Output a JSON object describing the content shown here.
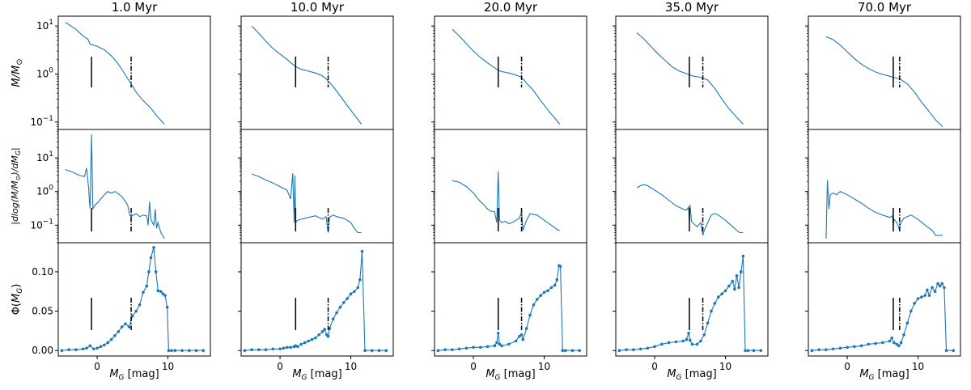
{
  "chart_data": {
    "type": "line",
    "layout": "3 rows x 5 columns of panels, shared x and y axes",
    "titles": [
      "1.0 Myr",
      "10.0 Myr",
      "20.0 Myr",
      "35.0 Myr",
      "70.0 Myr"
    ],
    "xlabel": "M_G [mag]",
    "xlim": [
      -5.5,
      16
    ],
    "xticks": [
      0,
      10
    ],
    "xtick_labels": [
      "0",
      "10"
    ],
    "rows": [
      {
        "ylabel": "M/M⊙",
        "yscale": "log",
        "ylim": [
          0.07,
          16
        ],
        "yticks": [
          0.1,
          1,
          10
        ],
        "ytick_exps": [
          "−1",
          "0",
          "1"
        ]
      },
      {
        "ylabel": "|dlog(M/M⊙)/dM_G|",
        "yscale": "log",
        "ylim": [
          0.03,
          70
        ],
        "yticks": [
          0.1,
          1,
          10
        ],
        "ytick_exps": [
          "−1",
          "0",
          "1"
        ]
      },
      {
        "ylabel": "Φ(M_G)",
        "yscale": "linear",
        "ylim": [
          -0.007,
          0.137
        ],
        "yticks": [
          0,
          0.05,
          0.1
        ],
        "ytick_labels": [
          "0.00",
          "0.05",
          "0.10"
        ]
      }
    ],
    "panels": [
      {
        "age": "1.0 Myr",
        "solid_marker_x": -0.8,
        "dashdot_marker_x": 4.8,
        "mass": {
          "x": [
            -4.5,
            -3,
            -2,
            -1.3,
            -1,
            0,
            1,
            2,
            3,
            4,
            4.8,
            5.5,
            6.5,
            7.5,
            8.5,
            9.5
          ],
          "y": [
            12,
            8.5,
            6.2,
            5.3,
            4.2,
            3.8,
            3.2,
            2.4,
            1.6,
            0.95,
            0.62,
            0.42,
            0.28,
            0.2,
            0.13,
            0.09
          ]
        },
        "dmdm": {
          "x": [
            -4.5,
            -3.5,
            -2.5,
            -1.8,
            -1.5,
            -1.2,
            -1.1,
            -1,
            -0.8,
            -0.6,
            -0.5,
            -0.3,
            0,
            0.5,
            1,
            1.5,
            2,
            2.5,
            3,
            3.5,
            4,
            4.3,
            4.6,
            4.8,
            5,
            5.2,
            5.5,
            6,
            6.5,
            7,
            7.2,
            7.4,
            7.6,
            7.8,
            8,
            8.2,
            8.4,
            8.6,
            9,
            9.5
          ],
          "y": [
            4.5,
            3.8,
            3,
            2.8,
            5,
            1.2,
            0.5,
            0.32,
            50,
            0.3,
            0.33,
            0.4,
            0.45,
            0.6,
            0.8,
            1.0,
            0.9,
            1.0,
            0.85,
            0.7,
            0.5,
            0.4,
            0.2,
            0.17,
            0.2,
            0.2,
            0.22,
            0.18,
            0.2,
            0.19,
            0.1,
            0.5,
            0.15,
            0.12,
            0.1,
            0.3,
            0.08,
            0.12,
            0.06,
            0.04
          ]
        },
        "lf": {
          "x": [
            -5,
            -4,
            -3,
            -2,
            -1.5,
            -1,
            -0.5,
            0,
            0.5,
            1,
            1.5,
            2,
            2.5,
            3,
            3.5,
            4,
            4.5,
            5,
            5.5,
            6,
            6.5,
            7,
            7.3,
            7.6,
            8,
            8.3,
            8.6,
            9,
            9.3,
            9.6,
            9.9,
            10.1,
            10.5,
            11,
            12,
            13,
            14,
            15
          ],
          "y": [
            0,
            0.001,
            0.001,
            0.002,
            0.003,
            0.006,
            0.002,
            0.003,
            0.005,
            0.007,
            0.01,
            0.014,
            0.019,
            0.024,
            0.03,
            0.034,
            0.03,
            0.044,
            0.05,
            0.058,
            0.074,
            0.082,
            0.1,
            0.118,
            0.131,
            0.1,
            0.076,
            0.075,
            0.072,
            0.07,
            0.055,
            0,
            0,
            0,
            0,
            0,
            0,
            0
          ]
        }
      },
      {
        "age": "10.0 Myr",
        "solid_marker_x": 2.2,
        "dashdot_marker_x": 6.8,
        "mass": {
          "x": [
            -4,
            -3,
            -2,
            -1,
            0,
            1,
            2,
            2.5,
            3,
            4,
            5,
            5.8,
            6.5,
            7.5,
            8.5,
            9.5,
            10.5,
            11.5
          ],
          "y": [
            10,
            7,
            4.8,
            3.4,
            2.6,
            2.0,
            1.5,
            1.35,
            1.25,
            1.15,
            1.05,
            0.95,
            0.8,
            0.55,
            0.35,
            0.22,
            0.14,
            0.09
          ]
        },
        "dmdm": {
          "x": [
            -4,
            -3,
            -2,
            -1,
            0,
            1,
            1.5,
            1.8,
            2,
            2.1,
            2.2,
            2.3,
            2.5,
            3,
            3.5,
            4,
            5,
            5.5,
            6,
            6.5,
            6.8,
            7,
            7.5,
            8,
            9,
            10,
            10.5,
            11,
            11.5
          ],
          "y": [
            3.3,
            2.8,
            2.2,
            1.8,
            1.4,
            1.1,
            0.6,
            3.5,
            0.12,
            3,
            0.11,
            0.13,
            0.14,
            0.15,
            0.16,
            0.17,
            0.19,
            0.17,
            0.15,
            0.18,
            0.06,
            0.17,
            0.2,
            0.18,
            0.16,
            0.12,
            0.08,
            0.06,
            0.06
          ]
        },
        "lf": {
          "x": [
            -5,
            -4,
            -3,
            -2,
            -1,
            0,
            0.5,
            1,
            1.5,
            2,
            2.2,
            2.5,
            3,
            3.5,
            4,
            4.5,
            5,
            5.5,
            6,
            6.3,
            6.6,
            6.8,
            7,
            7.5,
            8,
            8.5,
            9,
            9.5,
            10,
            10.5,
            11,
            11.3,
            11.6,
            12,
            13,
            14,
            15
          ],
          "y": [
            0,
            0.001,
            0.001,
            0.001,
            0.002,
            0.002,
            0.003,
            0.004,
            0.004,
            0.005,
            0.006,
            0.005,
            0.008,
            0.01,
            0.012,
            0.014,
            0.016,
            0.02,
            0.024,
            0.027,
            0.02,
            0.018,
            0.028,
            0.04,
            0.048,
            0.055,
            0.061,
            0.066,
            0.072,
            0.075,
            0.08,
            0.09,
            0.126,
            0,
            0,
            0,
            0
          ]
        }
      },
      {
        "age": "20.0 Myr",
        "solid_marker_x": 3.5,
        "dashdot_marker_x": 6.8,
        "mass": {
          "x": [
            -3,
            -2,
            -1,
            0,
            1,
            2,
            3,
            3.5,
            4,
            5,
            6,
            6.8,
            7.5,
            8.5,
            9.5,
            10.5,
            11.5,
            12.2
          ],
          "y": [
            8.5,
            6.2,
            4.3,
            3.0,
            2.2,
            1.7,
            1.35,
            1.2,
            1.12,
            1.05,
            0.95,
            0.85,
            0.65,
            0.45,
            0.28,
            0.18,
            0.12,
            0.09
          ]
        },
        "dmdm": {
          "x": [
            -3,
            -2,
            -1,
            0,
            0.5,
            1,
            1.5,
            2,
            2.5,
            3,
            3.3,
            3.5,
            3.7,
            4,
            4.5,
            5,
            5.5,
            6,
            6.5,
            6.8,
            7,
            7.5,
            8,
            9,
            10,
            11,
            12,
            12.2
          ],
          "y": [
            2.1,
            1.9,
            1.4,
            0.9,
            0.65,
            0.5,
            0.4,
            0.3,
            0.26,
            0.25,
            0.12,
            4,
            0.14,
            0.12,
            0.13,
            0.11,
            0.12,
            0.14,
            0.16,
            0.25,
            0.07,
            0.14,
            0.22,
            0.2,
            0.14,
            0.1,
            0.07,
            0.07
          ]
        },
        "lf": {
          "x": [
            -5,
            -4,
            -3,
            -2,
            -1,
            0,
            1,
            2,
            3,
            3.3,
            3.5,
            3.7,
            4,
            5,
            6,
            6.5,
            6.8,
            7,
            7.5,
            8,
            8.5,
            9,
            9.5,
            10,
            10.5,
            11,
            11.5,
            11.8,
            12.1,
            12.3,
            12.6,
            13,
            14,
            15
          ],
          "y": [
            0,
            0.001,
            0.001,
            0.002,
            0.003,
            0.004,
            0.004,
            0.005,
            0.006,
            0.01,
            0.022,
            0.008,
            0.006,
            0.008,
            0.012,
            0.018,
            0.02,
            0.014,
            0.028,
            0.045,
            0.058,
            0.065,
            0.07,
            0.074,
            0.076,
            0.08,
            0.083,
            0.09,
            0.108,
            0.107,
            0,
            0,
            0,
            0
          ]
        }
      },
      {
        "age": "35.0 Myr",
        "solid_marker_x": 4.9,
        "dashdot_marker_x": 6.8,
        "mass": {
          "x": [
            -2.5,
            -1.5,
            -0.5,
            0.5,
            1.5,
            2.5,
            3.5,
            4.5,
            5,
            5.5,
            6.5,
            7.5,
            8.5,
            9.5,
            10.5,
            11.5,
            12.5
          ],
          "y": [
            7.2,
            5.3,
            3.7,
            2.6,
            1.9,
            1.4,
            1.15,
            1.02,
            0.95,
            0.9,
            0.85,
            0.75,
            0.5,
            0.3,
            0.19,
            0.13,
            0.09
          ]
        },
        "dmdm": {
          "x": [
            -2.5,
            -2,
            -1.5,
            -1,
            0,
            1,
            2,
            3,
            4,
            4.5,
            4.8,
            4.9,
            5,
            5.2,
            5.5,
            6,
            6.5,
            6.8,
            7,
            7.5,
            8,
            8.5,
            9,
            10,
            11,
            12,
            12.5
          ],
          "y": [
            1.3,
            1.5,
            1.6,
            1.5,
            1.1,
            0.8,
            0.55,
            0.38,
            0.3,
            0.28,
            0.35,
            0.12,
            0.4,
            0.13,
            0.11,
            0.09,
            0.12,
            0.05,
            0.07,
            0.12,
            0.2,
            0.22,
            0.2,
            0.14,
            0.09,
            0.06,
            0.06
          ]
        },
        "lf": {
          "x": [
            -5,
            -4,
            -3,
            -2,
            -1,
            0,
            1,
            2,
            3,
            4,
            4.5,
            4.8,
            5,
            5.3,
            6,
            6.5,
            7,
            7.5,
            8,
            8.5,
            9,
            9.5,
            10,
            10.5,
            11,
            11.3,
            11.6,
            11.9,
            12.2,
            12.5,
            12.8,
            13.2,
            14,
            15
          ],
          "y": [
            0,
            0.001,
            0.001,
            0.002,
            0.003,
            0.005,
            0.008,
            0.01,
            0.011,
            0.012,
            0.014,
            0.022,
            0.013,
            0.008,
            0.008,
            0.012,
            0.02,
            0.035,
            0.05,
            0.06,
            0.068,
            0.072,
            0.076,
            0.082,
            0.088,
            0.078,
            0.095,
            0.08,
            0.1,
            0.12,
            0,
            0,
            0,
            0
          ]
        }
      },
      {
        "age": "70.0 Myr",
        "solid_marker_x": 6.5,
        "dashdot_marker_x": 7.4,
        "mass": {
          "x": [
            -3,
            -2,
            -1,
            0,
            1,
            2,
            3,
            4,
            5,
            6,
            6.5,
            7,
            7.5,
            8.5,
            9.5,
            10.5,
            11.5,
            12.5,
            13.5
          ],
          "y": [
            6,
            5.2,
            4.0,
            2.9,
            2.1,
            1.6,
            1.3,
            1.1,
            0.98,
            0.9,
            0.85,
            0.82,
            0.78,
            0.62,
            0.42,
            0.26,
            0.17,
            0.11,
            0.08
          ]
        },
        "dmdm": {
          "x": [
            -3,
            -2.8,
            -2.6,
            -2.4,
            -2,
            -1.5,
            -1,
            -0.5,
            0,
            1,
            2,
            3,
            4,
            5,
            6,
            6.4,
            6.5,
            6.6,
            7,
            7.4,
            7.5,
            8,
            8.5,
            9,
            10,
            11,
            12,
            12.5,
            13,
            13.5
          ],
          "y": [
            0.04,
            2.2,
            0.3,
            0.8,
            0.9,
            0.8,
            1.0,
            0.9,
            0.8,
            0.6,
            0.45,
            0.32,
            0.24,
            0.2,
            0.17,
            0.19,
            0.09,
            0.15,
            0.12,
            0.07,
            0.11,
            0.16,
            0.18,
            0.2,
            0.15,
            0.1,
            0.07,
            0.05,
            0.05,
            0.05
          ]
        },
        "lf": {
          "x": [
            -5,
            -4,
            -3,
            -2,
            -1,
            0,
            1,
            2,
            3,
            4,
            5,
            6,
            6.3,
            6.6,
            7,
            7.3,
            7.6,
            8,
            8.5,
            9,
            9.5,
            10,
            10.5,
            11,
            11.3,
            11.6,
            12,
            12.4,
            12.8,
            13.1,
            13.4,
            13.7,
            14,
            15
          ],
          "y": [
            0,
            0.001,
            0.001,
            0.002,
            0.003,
            0.004,
            0.005,
            0.006,
            0.008,
            0.009,
            0.01,
            0.012,
            0.016,
            0.01,
            0.008,
            0.006,
            0.01,
            0.02,
            0.035,
            0.05,
            0.06,
            0.066,
            0.068,
            0.07,
            0.077,
            0.07,
            0.08,
            0.075,
            0.085,
            0.082,
            0.085,
            0.08,
            0,
            0
          ]
        }
      }
    ],
    "series_color": "#1f77b4",
    "marker_color": "#000000"
  }
}
